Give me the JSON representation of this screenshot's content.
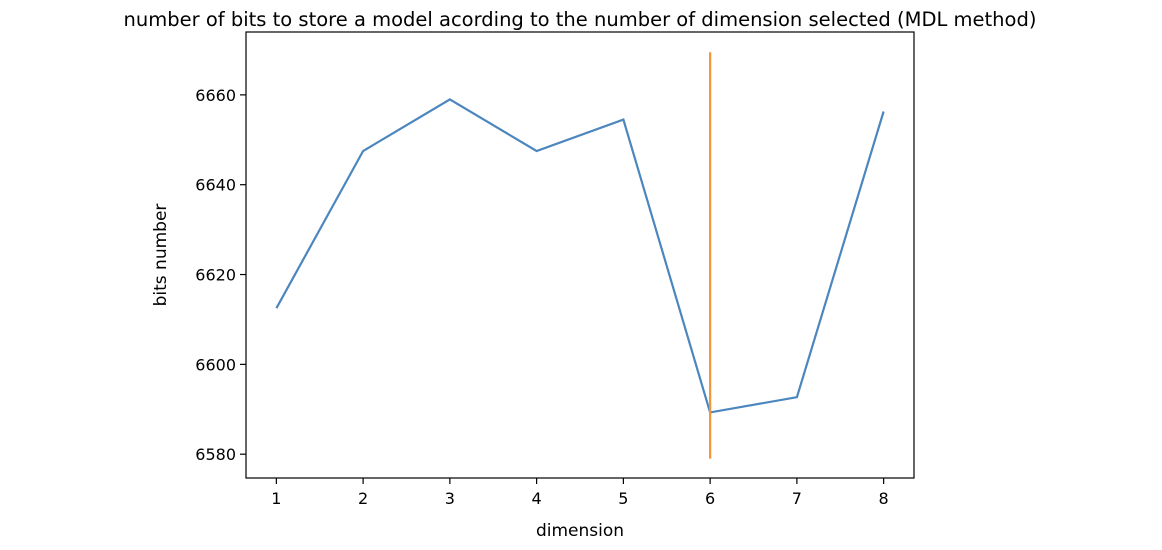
{
  "chart_data": {
    "type": "line",
    "title": "number of bits to store a model acording to the number of dimension selected (MDL method)",
    "xlabel": "dimension",
    "ylabel": "bits number",
    "xlim": [
      0.65,
      8.35
    ],
    "ylim": [
      6574.7,
      6674.0
    ],
    "xticks": [
      1,
      2,
      3,
      4,
      5,
      6,
      7,
      8
    ],
    "yticks": [
      6580,
      6600,
      6620,
      6640,
      6660
    ],
    "grid": false,
    "series": [
      {
        "x": [
          1,
          2,
          3,
          4,
          5,
          6,
          7,
          8
        ],
        "values": [
          6612.5,
          6647.5,
          6659.0,
          6647.5,
          6654.5,
          6589.3,
          6592.7,
          6656.3
        ],
        "color": "#4c86be"
      }
    ],
    "vlines": [
      {
        "x": 6,
        "ymin": 6579,
        "ymax": 6669.5,
        "color": "#f2953a"
      }
    ]
  }
}
